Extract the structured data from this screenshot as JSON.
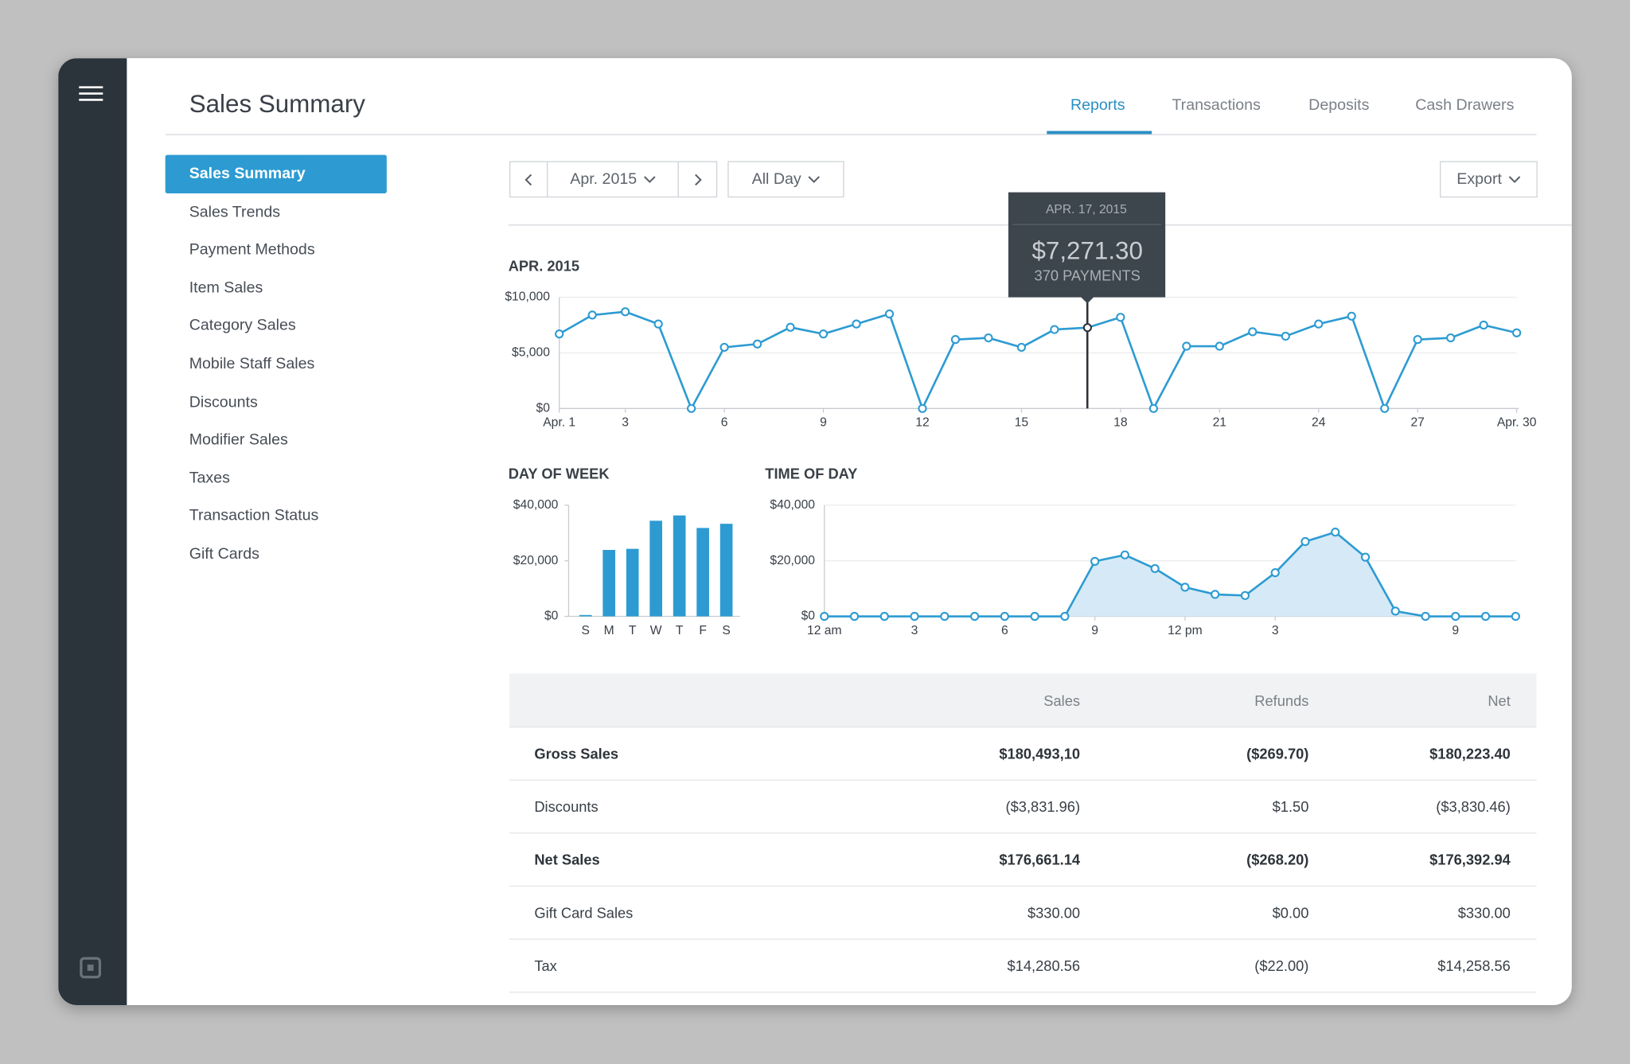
{
  "header": {
    "title": "Sales Summary"
  },
  "tabs": [
    "Reports",
    "Transactions",
    "Deposits",
    "Cash Drawers"
  ],
  "nav": [
    "Sales Summary",
    "Sales Trends",
    "Payment Methods",
    "Item Sales",
    "Category Sales",
    "Mobile Staff Sales",
    "Discounts",
    "Modifier Sales",
    "Taxes",
    "Transaction Status",
    "Gift Cards"
  ],
  "controls": {
    "period": "Apr. 2015",
    "time": "All Day",
    "export": "Export"
  },
  "chart_data": [
    {
      "type": "line",
      "title": "APR. 2015",
      "color": "#2d9bd2",
      "grid": true,
      "x": [
        1,
        2,
        3,
        4,
        5,
        6,
        7,
        8,
        9,
        10,
        11,
        12,
        13,
        14,
        15,
        16,
        17,
        18,
        19,
        20,
        21,
        22,
        23,
        24,
        25,
        26,
        27,
        28,
        29,
        30
      ],
      "values": [
        6700,
        8400,
        8700,
        7600,
        0,
        5500,
        5800,
        7300,
        6700,
        7600,
        8500,
        0,
        6200,
        6350,
        5500,
        7100,
        7271.3,
        8200,
        0,
        5600,
        5600,
        6900,
        6500,
        7600,
        8300,
        0,
        6200,
        6350,
        7500,
        6800
      ],
      "xlim": [
        1,
        30
      ],
      "xticks": [
        {
          "value": 1,
          "label": "Apr. 1"
        },
        3,
        6,
        9,
        12,
        15,
        18,
        21,
        24,
        27,
        {
          "value": 30,
          "label": "Apr. 30"
        }
      ],
      "ylim": [
        0,
        10000
      ],
      "yticks": [
        {
          "value": 0,
          "label": "$0"
        },
        {
          "value": 5000,
          "label": "$5,000"
        },
        {
          "value": 10000,
          "label": "$10,000"
        }
      ],
      "tooltip": {
        "date": "APR. 17, 2015",
        "value": "$7,271.30",
        "payments": "370 PAYMENTS"
      }
    },
    {
      "type": "bar",
      "title": "DAY OF WEEK",
      "color": "#2d9bd2",
      "grid": false,
      "categories": [
        "S",
        "M",
        "T",
        "W",
        "T",
        "F",
        "S"
      ],
      "values": [
        500,
        23900,
        24300,
        34400,
        36300,
        31800,
        33300
      ],
      "ylim": [
        0,
        40000
      ],
      "yticks": [
        {
          "value": 0,
          "label": "$0"
        },
        {
          "value": 20000,
          "label": "$20,000"
        },
        {
          "value": 40000,
          "label": "$40,000"
        }
      ]
    },
    {
      "type": "area",
      "title": "TIME OF DAY",
      "color": "#2d9bd2",
      "fill": "#d5eaf6",
      "grid": true,
      "x": [
        0,
        1,
        2,
        3,
        4,
        5,
        6,
        7,
        8,
        9,
        10,
        11,
        12,
        13,
        14,
        15,
        16,
        17,
        18,
        19,
        20,
        21,
        22,
        23
      ],
      "values": [
        0,
        0,
        0,
        0,
        0,
        0,
        0,
        0,
        0,
        19800,
        22100,
        17200,
        10500,
        7900,
        7500,
        15700,
        26900,
        30300,
        21300,
        1900,
        0,
        0,
        0,
        0
      ],
      "xlim": [
        0,
        23
      ],
      "xticks": [
        {
          "value": 0,
          "label": "12 am"
        },
        3,
        6,
        9,
        {
          "value": 12,
          "label": "12 pm"
        },
        {
          "value": 15,
          "label": "3"
        },
        {
          "value": 21,
          "label": "9"
        }
      ],
      "ylim": [
        0,
        40000
      ],
      "yticks": [
        {
          "value": 0,
          "label": "$0"
        },
        {
          "value": 20000,
          "label": "$20,000"
        },
        {
          "value": 40000,
          "label": "$40,000"
        }
      ]
    }
  ],
  "table": {
    "columns": [
      "Sales",
      "Refunds",
      "Net"
    ],
    "rows": [
      [
        "Gross Sales",
        "$180,493,10",
        "($269.70)",
        "$180,223.40"
      ],
      [
        "Discounts",
        "($3,831.96)",
        "$1.50",
        "($3,830.46)"
      ],
      [
        "Net Sales",
        "$176,661.14",
        "($268.20)",
        "$176,392.94"
      ],
      [
        "Gift Card Sales",
        "$330.00",
        "$0.00",
        "$330.00"
      ],
      [
        "Tax",
        "$14,280.56",
        "($22.00)",
        "$14,258.56"
      ]
    ]
  }
}
